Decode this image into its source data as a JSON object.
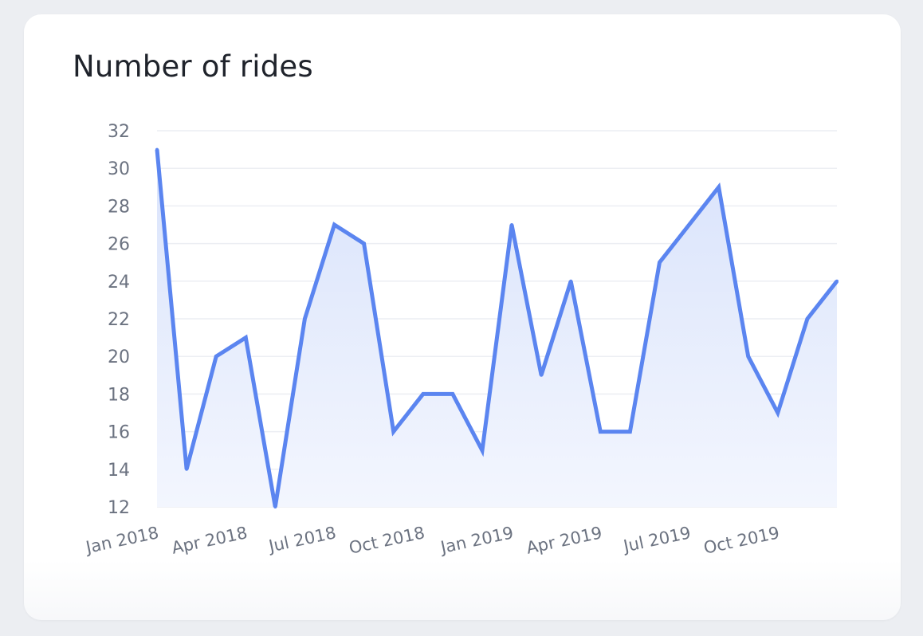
{
  "chart_data": {
    "type": "area",
    "title": "Number of rides",
    "xlabel": "",
    "ylabel": "",
    "ylim": [
      12,
      32
    ],
    "yticks": [
      12,
      14,
      16,
      18,
      20,
      22,
      24,
      26,
      28,
      30,
      32
    ],
    "xtick_labels": [
      "Jan 2018",
      "Apr 2018",
      "Jul 2018",
      "Oct 2018",
      "Jan 2019",
      "Apr 2019",
      "Jul 2019",
      "Oct 2019"
    ],
    "xtick_dates": [
      "2018-01",
      "2018-04",
      "2018-07",
      "2018-10",
      "2019-01",
      "2019-04",
      "2019-07",
      "2019-10"
    ],
    "grid": true,
    "series": [
      {
        "x": [
          "2018-01",
          "2018-02",
          "2018-03",
          "2018-04",
          "2018-05",
          "2018-06",
          "2018-07",
          "2018-08",
          "2018-09",
          "2018-10",
          "2018-11",
          "2018-12",
          "2019-01",
          "2019-02",
          "2019-03",
          "2019-04",
          "2019-05",
          "2019-06",
          "2019-07",
          "2019-08",
          "2019-09",
          "2019-10",
          "2019-11",
          "2019-12"
        ],
        "values": [
          31,
          14,
          20,
          21,
          12,
          22,
          27,
          26,
          16,
          18,
          18,
          15,
          27,
          19,
          24,
          16,
          16,
          25,
          27,
          29,
          20,
          17,
          22,
          24
        ]
      }
    ],
    "colors": {
      "line": "#5b85f0",
      "fill_top": "#d9e3fb",
      "fill_bottom": "#f3f6fe"
    }
  }
}
